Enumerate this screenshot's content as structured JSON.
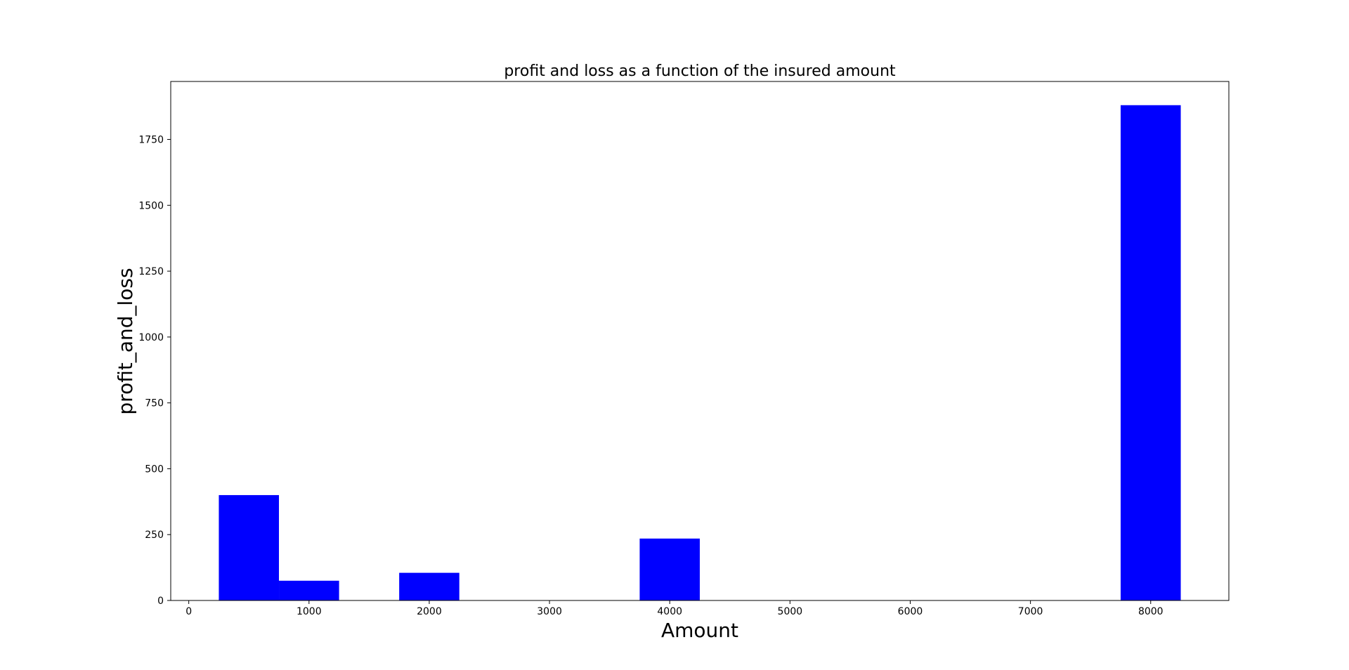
{
  "chart_data": {
    "type": "bar",
    "title": "profit and loss as a function of the insured amount",
    "xlabel": "Amount",
    "ylabel": "profit_and_loss",
    "bar_color": "#0000ff",
    "bar_width": 500,
    "xlim": [
      -150,
      8650
    ],
    "ylim": [
      0,
      1970
    ],
    "xticks": [
      0,
      1000,
      2000,
      3000,
      4000,
      5000,
      6000,
      7000,
      8000
    ],
    "yticks": [
      0,
      250,
      500,
      750,
      1000,
      1250,
      1500,
      1750
    ],
    "x": [
      500,
      1000,
      2000,
      4000,
      8000
    ],
    "values": [
      400,
      75,
      105,
      235,
      1880
    ],
    "grid": false,
    "legend": "none"
  }
}
